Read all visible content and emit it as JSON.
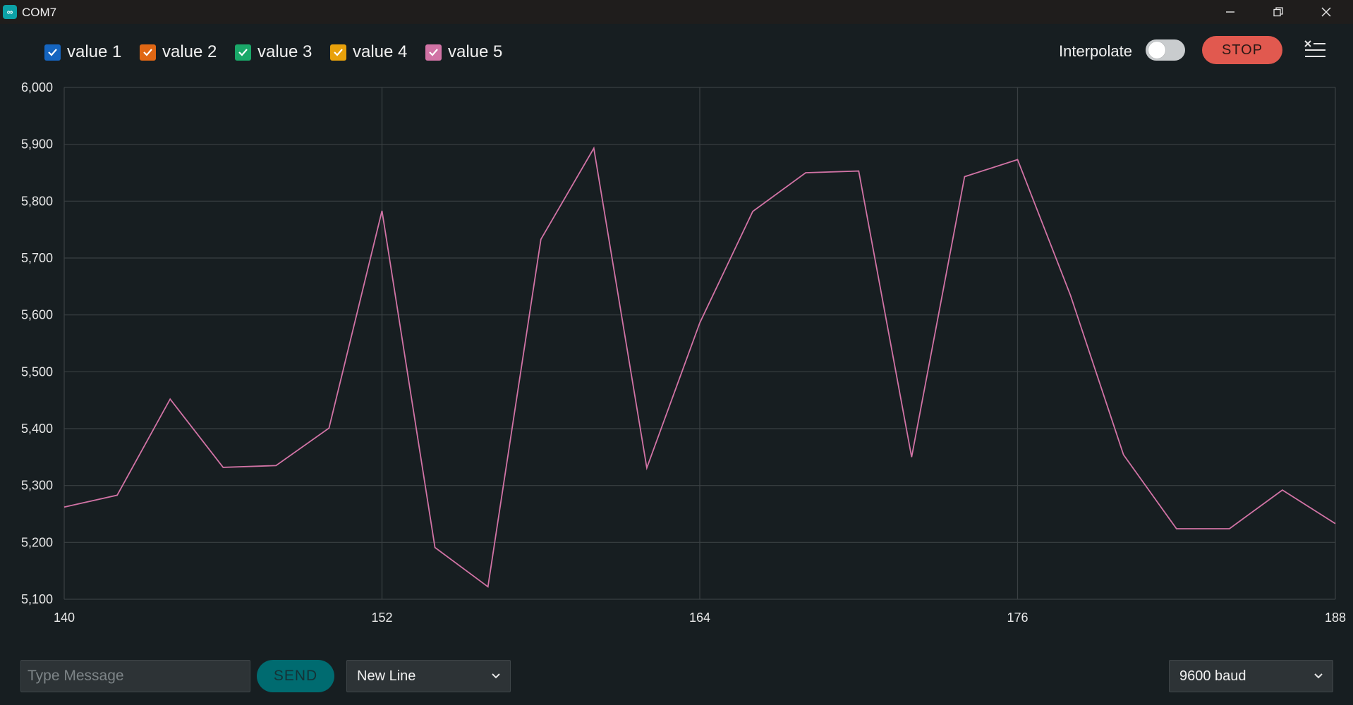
{
  "window": {
    "title": "COM7",
    "app_icon": "arduino-infinity-icon",
    "controls": [
      "minimize-icon",
      "restore-icon",
      "close-icon"
    ]
  },
  "toolbar": {
    "series": [
      {
        "label": "value 1",
        "color": "#1565c0",
        "checked": true
      },
      {
        "label": "value 2",
        "color": "#e06714",
        "checked": true
      },
      {
        "label": "value 3",
        "color": "#1aa869",
        "checked": true
      },
      {
        "label": "value 4",
        "color": "#e8a10b",
        "checked": true
      },
      {
        "label": "value 5",
        "color": "#d173a5",
        "checked": true
      }
    ],
    "interpolate_label": "Interpolate",
    "interpolate_on": false,
    "stop_label": "STOP",
    "clear_icon": "clear-output-icon"
  },
  "chart_data": {
    "type": "line",
    "title": "",
    "xlabel": "",
    "ylabel": "",
    "xlim": [
      140,
      188
    ],
    "ylim": [
      5100,
      6000
    ],
    "x_ticks": [
      "140",
      "152",
      "164",
      "176",
      "188"
    ],
    "y_ticks": [
      "6,000",
      "5,900",
      "5,800",
      "5,700",
      "5,600",
      "5,500",
      "5,400",
      "5,300",
      "5,200",
      "5,100"
    ],
    "grid": true,
    "series": [
      {
        "name": "value 5",
        "color": "#d173a5",
        "x": [
          140,
          142,
          144,
          146,
          148,
          150,
          152,
          154,
          156,
          158,
          160,
          162,
          164,
          166,
          168,
          170,
          172,
          174,
          176,
          178,
          180,
          182,
          184,
          186,
          188
        ],
        "values": [
          5262,
          5283,
          5452,
          5332,
          5335,
          5401,
          5783,
          5191,
          5122,
          5733,
          5893,
          5331,
          5586,
          5782,
          5850,
          5853,
          5350,
          5843,
          5873,
          5634,
          5354,
          5224,
          5224,
          5292,
          5233
        ]
      }
    ]
  },
  "bottom": {
    "message_placeholder": "Type Message",
    "message_value": "",
    "send_label": "SEND",
    "line_ending": "New Line",
    "baud_rate": "9600 baud"
  }
}
